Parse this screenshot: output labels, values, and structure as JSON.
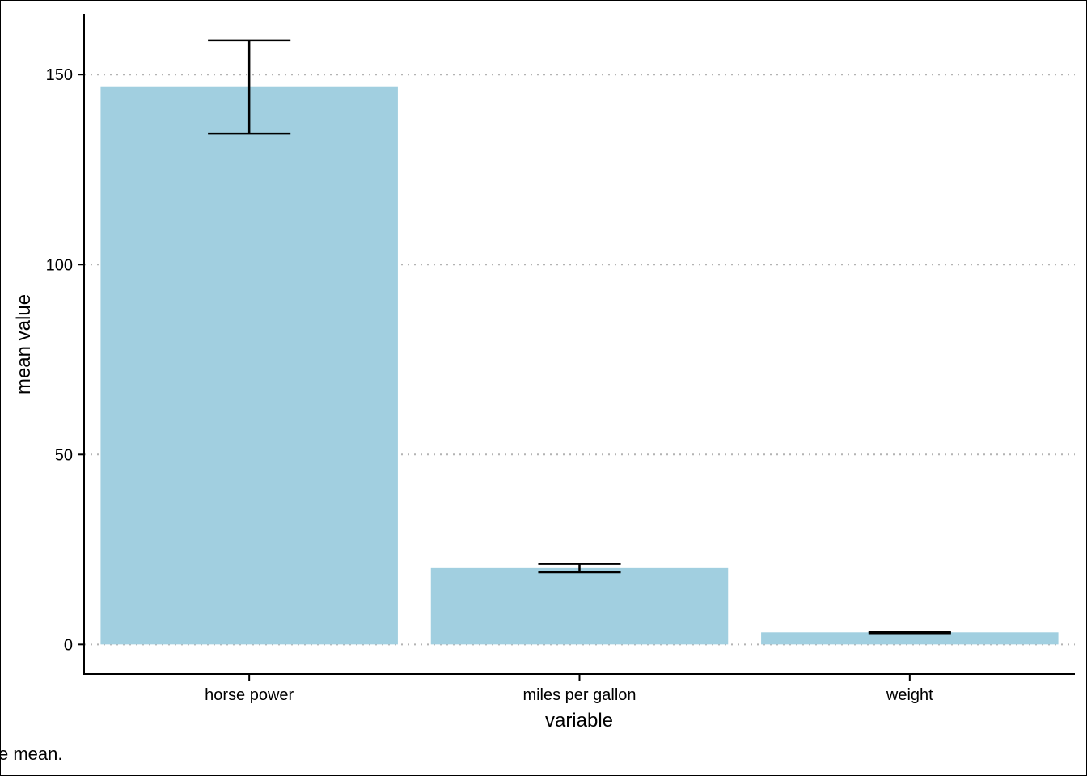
{
  "chart_data": {
    "type": "bar",
    "categories": [
      "horse power",
      "miles per gallon",
      "weight"
    ],
    "values": [
      146.7,
      20.1,
      3.2
    ],
    "error_low": [
      134.5,
      19.0,
      3.0
    ],
    "error_high": [
      159.0,
      21.2,
      3.4
    ],
    "xlabel": "variable",
    "ylabel": "mean value",
    "yticks": [
      0,
      50,
      100,
      150
    ],
    "ylim": [
      -7.8,
      166
    ],
    "grid": "horizontal-dotted",
    "caption": "e mean.",
    "colors": {
      "bar": "#a1cfe0",
      "error_bar": "#000000",
      "grid": "#b3b3b3",
      "axis": "#000000"
    }
  }
}
